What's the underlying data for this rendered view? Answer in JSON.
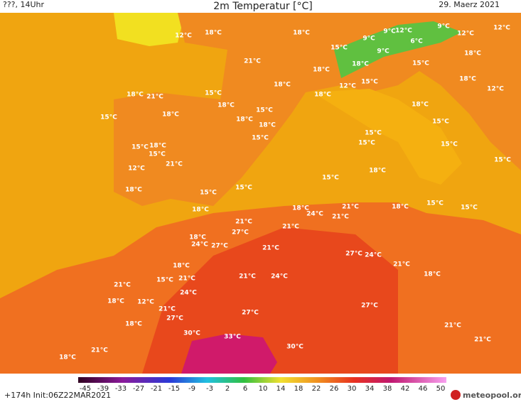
{
  "header": {
    "left": "???, 14Uhr",
    "title": "2m Temperatur [°C]",
    "date": "29. Maerz 2021"
  },
  "labels": [
    "12°C",
    "18°C",
    "18°C",
    "21°C",
    "18°C",
    "12°C",
    "9°C",
    "9°C",
    "15°C",
    "9°C",
    "6°C",
    "9°C",
    "12°C",
    "12°C",
    "18°C",
    "18°C",
    "18°C",
    "15°C",
    "18°C",
    "12°C",
    "12°C",
    "15°C",
    "18°C",
    "18°C",
    "21°C",
    "15°C",
    "18°C",
    "15°C",
    "15°C",
    "18°C",
    "18°C",
    "18°C",
    "15°C",
    "18°C",
    "15°C",
    "15°C",
    "15°C",
    "15°C",
    "18°C",
    "15°C",
    "15°C",
    "12°C",
    "21°C",
    "18°C",
    "15°C",
    "18°C",
    "15°C",
    "15°C",
    "15°C",
    "15°C",
    "15°C",
    "18°C",
    "18°C",
    "24°C",
    "21°C",
    "21°C",
    "18°C",
    "21°C",
    "27°C",
    "21°C",
    "18°C",
    "24°C",
    "27°C",
    "21°C",
    "27°C",
    "24°C",
    "18°C",
    "21°C",
    "18°C",
    "21°C",
    "24°C",
    "15°C",
    "21°C",
    "21°C",
    "24°C",
    "18°C",
    "12°C",
    "21°C",
    "27°C",
    "27°C",
    "27°C",
    "18°C",
    "21°C",
    "30°C",
    "33°C",
    "21°C",
    "30°C",
    "21°C",
    "18°C"
  ],
  "colorbar": [
    -45,
    -39,
    -33,
    -27,
    -21,
    -15,
    -9,
    -3,
    2,
    6,
    10,
    14,
    18,
    22,
    26,
    30,
    34,
    38,
    42,
    46,
    50
  ],
  "footer": {
    "run": "+174h Init:06Z22MAR2021",
    "logo": "meteopool.org"
  }
}
